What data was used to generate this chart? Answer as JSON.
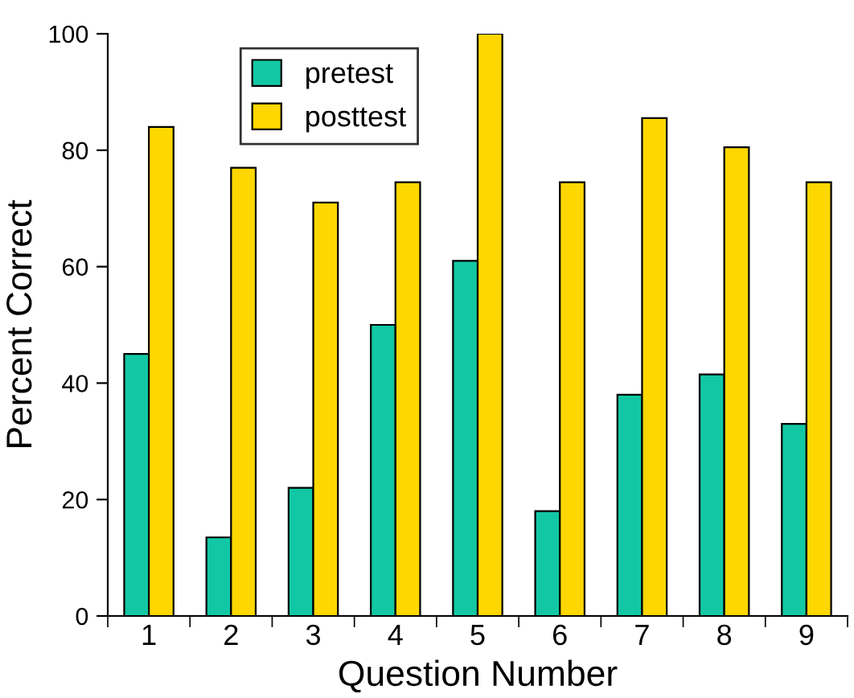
{
  "chart_data": {
    "type": "bar",
    "xlabel": "Question Number",
    "ylabel": "Percent Correct",
    "categories": [
      "1",
      "2",
      "3",
      "4",
      "5",
      "6",
      "7",
      "8",
      "9"
    ],
    "series": [
      {
        "name": "pretest",
        "color": "#12c8a4",
        "values": [
          45,
          13.5,
          22,
          50,
          61,
          18,
          38,
          41.5,
          33
        ]
      },
      {
        "name": "posttest",
        "color": "#ffd700",
        "values": [
          84,
          77,
          71,
          74.5,
          100,
          74.5,
          85.5,
          80.5,
          74.5
        ]
      }
    ],
    "ylim": [
      0,
      100
    ],
    "yticks": [
      0,
      20,
      40,
      60,
      80,
      100
    ],
    "grid": false,
    "legend": "top left"
  }
}
